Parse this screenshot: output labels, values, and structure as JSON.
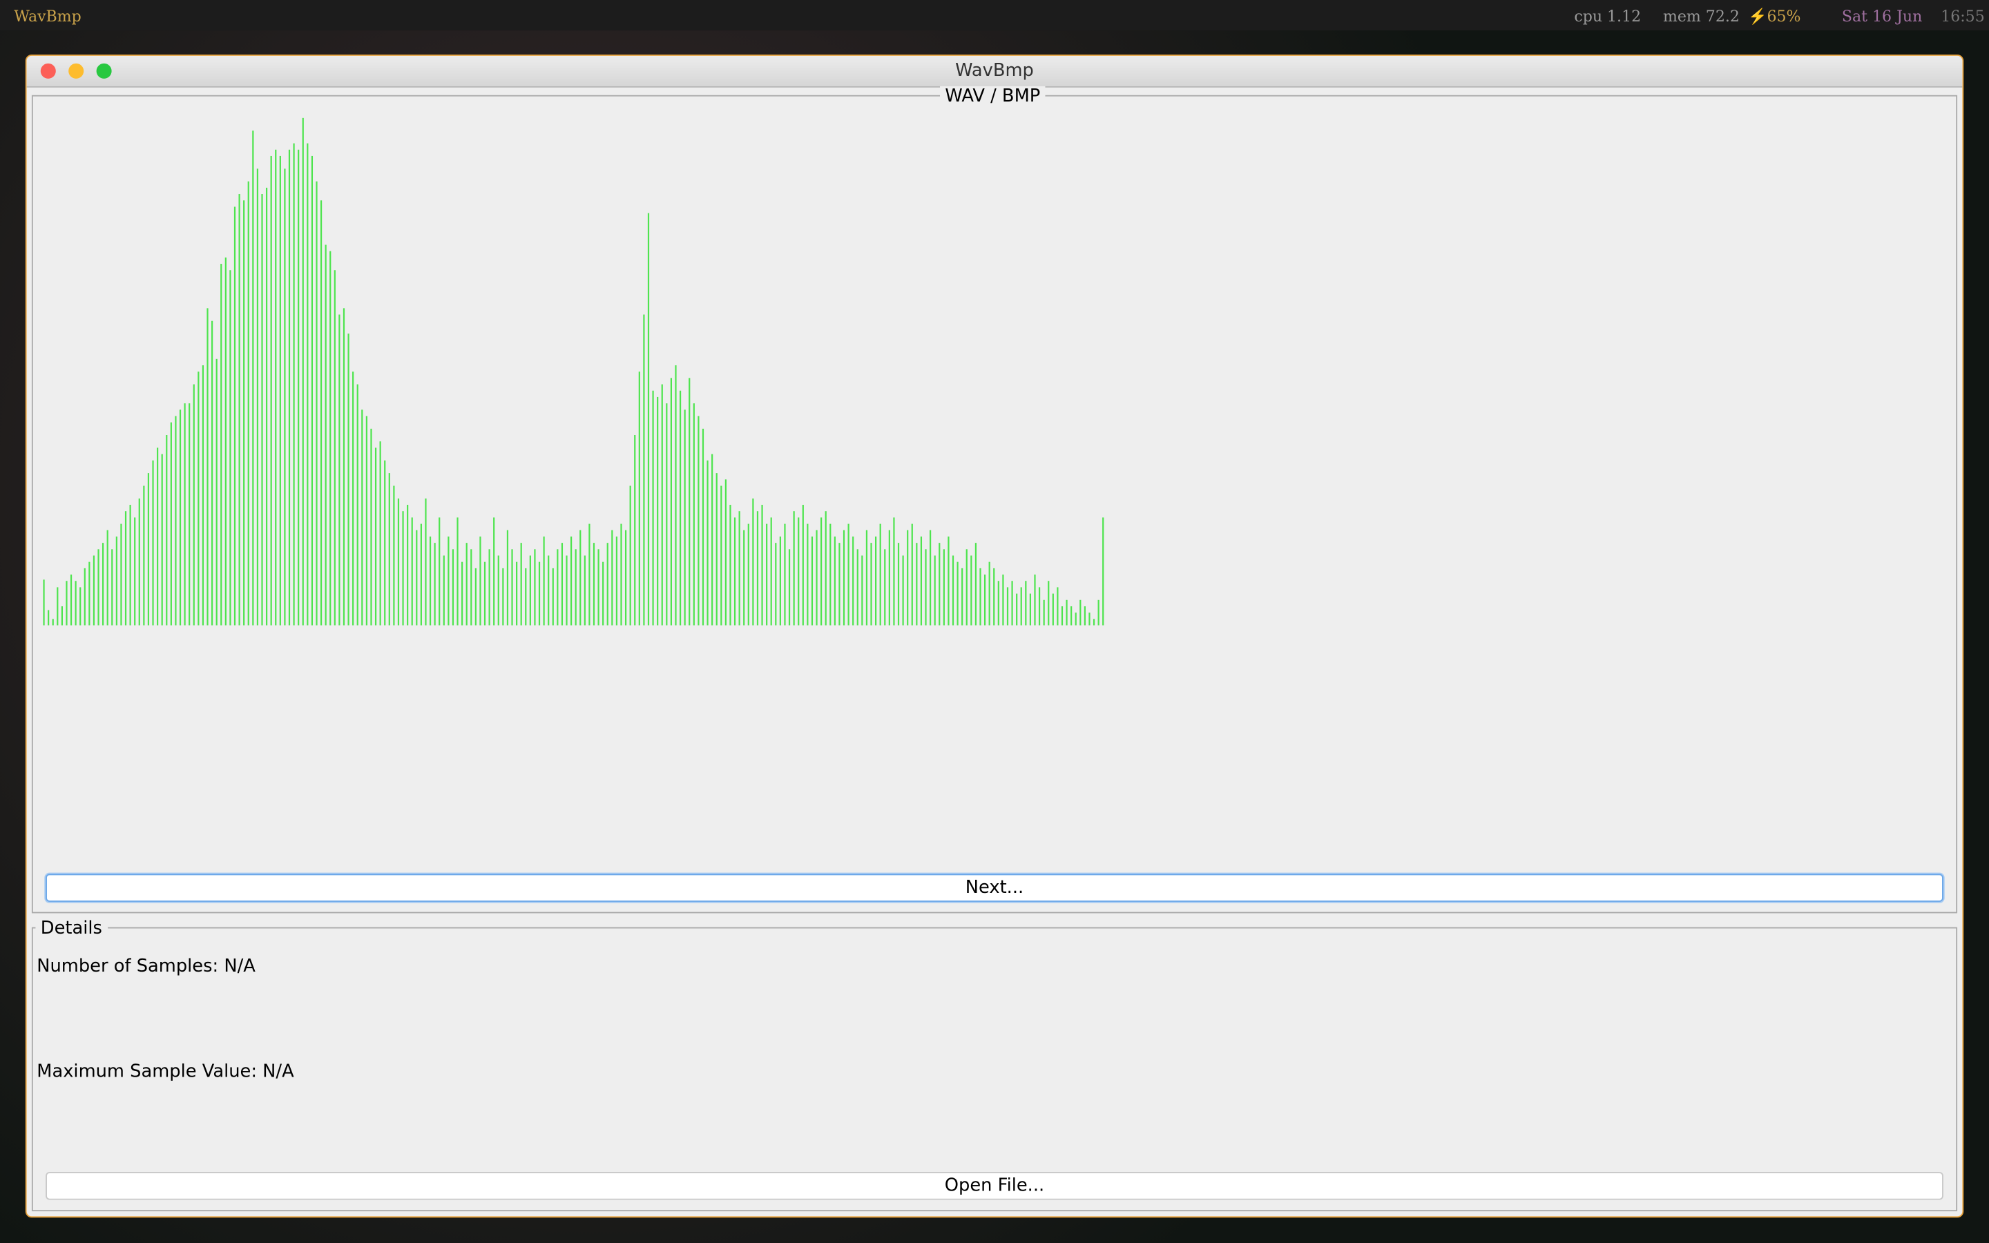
{
  "menubar": {
    "app": "WavBmp",
    "cpu": "cpu 1.12",
    "mem": "mem 72.2",
    "battery": "⚡65%",
    "date": "Sat 16 Jun",
    "time": "16:55"
  },
  "window": {
    "title": "WavBmp"
  },
  "chart_panel": {
    "title": "WAV / BMP",
    "button": "Next..."
  },
  "details": {
    "title": "Details",
    "samples": "Number of Samples: N/A",
    "maximum": "Maximum Sample Value: N/A",
    "button": "Open File..."
  },
  "chart_data": {
    "type": "bar",
    "color": "#4ee44e",
    "values": [
      36,
      12,
      5,
      30,
      15,
      35,
      40,
      35,
      30,
      45,
      50,
      55,
      60,
      65,
      75,
      60,
      70,
      80,
      90,
      95,
      85,
      100,
      110,
      120,
      130,
      140,
      135,
      150,
      160,
      165,
      170,
      175,
      175,
      190,
      200,
      205,
      250,
      240,
      210,
      285,
      290,
      280,
      330,
      340,
      335,
      350,
      390,
      360,
      340,
      345,
      370,
      375,
      370,
      360,
      375,
      380,
      375,
      400,
      380,
      370,
      350,
      335,
      300,
      295,
      280,
      245,
      250,
      230,
      200,
      190,
      170,
      165,
      155,
      140,
      145,
      130,
      120,
      110,
      100,
      90,
      95,
      85,
      75,
      80,
      100,
      70,
      65,
      85,
      55,
      70,
      60,
      85,
      50,
      65,
      60,
      45,
      70,
      50,
      60,
      85,
      55,
      45,
      75,
      60,
      50,
      65,
      45,
      55,
      60,
      50,
      70,
      55,
      45,
      60,
      65,
      55,
      70,
      60,
      75,
      55,
      80,
      65,
      60,
      50,
      65,
      75,
      70,
      80,
      75,
      110,
      150,
      200,
      245,
      325,
      185,
      180,
      190,
      175,
      195,
      205,
      185,
      170,
      195,
      175,
      165,
      155,
      130,
      135,
      120,
      110,
      115,
      95,
      85,
      90,
      75,
      80,
      100,
      90,
      95,
      80,
      85,
      65,
      70,
      80,
      60,
      90,
      85,
      95,
      80,
      70,
      75,
      85,
      90,
      80,
      70,
      65,
      75,
      80,
      70,
      60,
      55,
      75,
      65,
      70,
      80,
      60,
      75,
      85,
      65,
      55,
      75,
      80,
      65,
      70,
      60,
      75,
      55,
      65,
      60,
      70,
      55,
      50,
      45,
      60,
      55,
      65,
      45,
      40,
      50,
      45,
      35,
      40,
      30,
      35,
      25,
      30,
      35,
      25,
      40,
      30,
      20,
      35,
      25,
      30,
      15,
      20,
      15,
      10,
      20,
      15,
      10,
      5,
      20,
      85
    ]
  }
}
